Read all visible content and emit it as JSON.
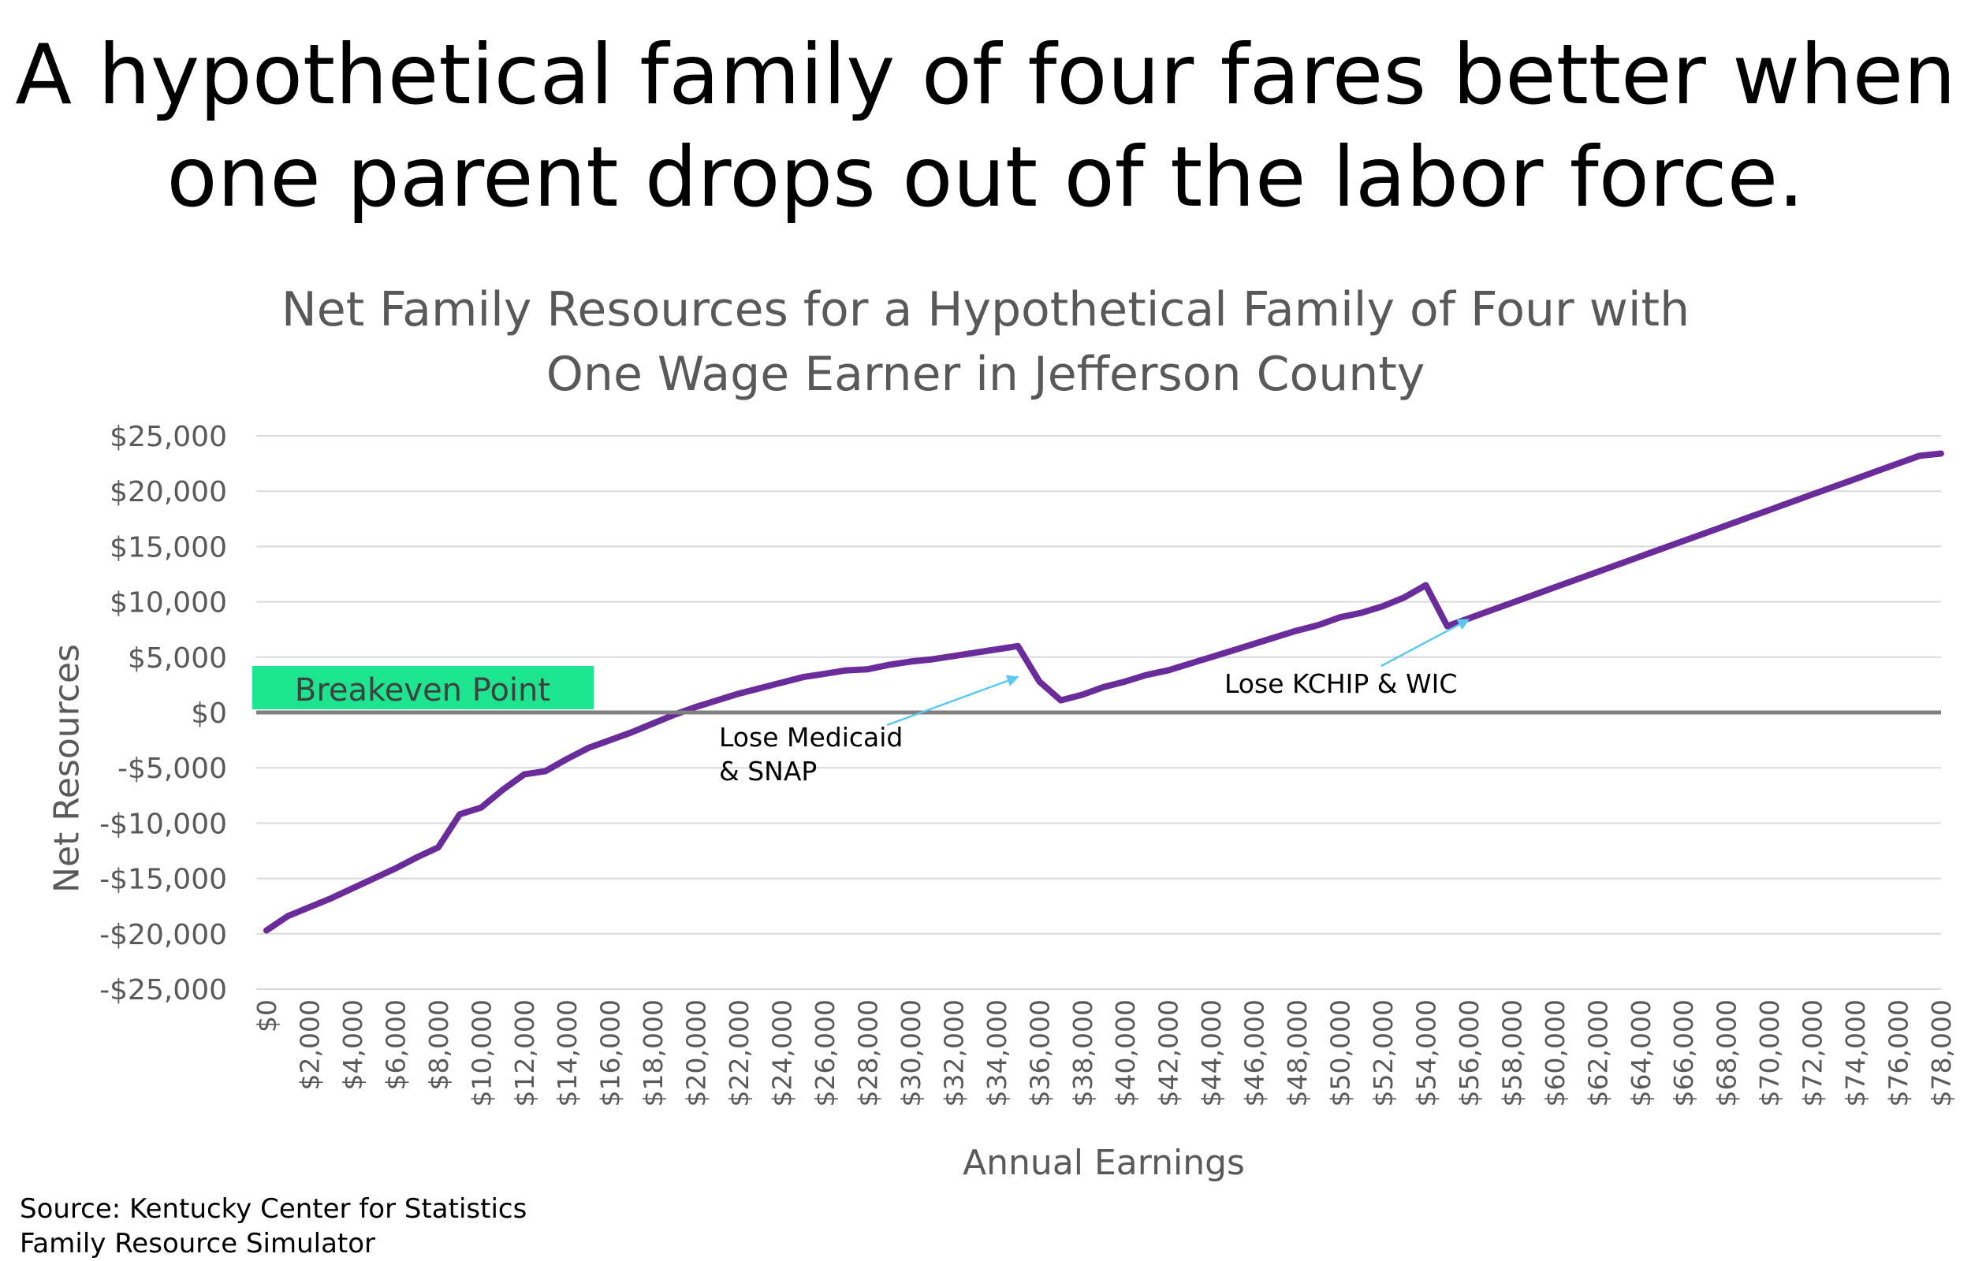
{
  "headline": {
    "line1": "A hypothetical family of four fares better when",
    "line2": "one parent drops out of the labor force."
  },
  "source": {
    "line1": "Source: Kentucky Center for Statistics",
    "line2": "Family Resource Simulator"
  },
  "colors": {
    "line": "#6a2c9a",
    "breakeven_box": "#1de48f",
    "arrow": "#5bc8f0",
    "grid": "#d9d9d9",
    "zero_line": "#7f7f7f"
  },
  "chart_data": {
    "type": "line",
    "title_line1": "Net Family Resources for a Hypothetical Family of Four with",
    "title_line2": "One Wage Earner in Jefferson County",
    "xlabel": "Annual Earnings",
    "ylabel": "Net Resources",
    "xlim": [
      0,
      78000
    ],
    "ylim": [
      -25000,
      25000
    ],
    "grid": true,
    "y_ticks": [
      {
        "value": 25000,
        "label": "$25,000"
      },
      {
        "value": 20000,
        "label": "$20,000"
      },
      {
        "value": 15000,
        "label": "$15,000"
      },
      {
        "value": 10000,
        "label": "$10,000"
      },
      {
        "value": 5000,
        "label": "$5,000"
      },
      {
        "value": 0,
        "label": "$0"
      },
      {
        "value": -5000,
        "label": "-$5,000"
      },
      {
        "value": -10000,
        "label": "-$10,000"
      },
      {
        "value": -15000,
        "label": "-$15,000"
      },
      {
        "value": -20000,
        "label": "-$20,000"
      },
      {
        "value": -25000,
        "label": "-$25,000"
      }
    ],
    "x_ticks": [
      {
        "value": 0,
        "label": "$0"
      },
      {
        "value": 2000,
        "label": "$2,000"
      },
      {
        "value": 4000,
        "label": "$4,000"
      },
      {
        "value": 6000,
        "label": "$6,000"
      },
      {
        "value": 8000,
        "label": "$8,000"
      },
      {
        "value": 10000,
        "label": "$10,000"
      },
      {
        "value": 12000,
        "label": "$12,000"
      },
      {
        "value": 14000,
        "label": "$14,000"
      },
      {
        "value": 16000,
        "label": "$16,000"
      },
      {
        "value": 18000,
        "label": "$18,000"
      },
      {
        "value": 20000,
        "label": "$20,000"
      },
      {
        "value": 22000,
        "label": "$22,000"
      },
      {
        "value": 24000,
        "label": "$24,000"
      },
      {
        "value": 26000,
        "label": "$26,000"
      },
      {
        "value": 28000,
        "label": "$28,000"
      },
      {
        "value": 30000,
        "label": "$30,000"
      },
      {
        "value": 32000,
        "label": "$32,000"
      },
      {
        "value": 34000,
        "label": "$34,000"
      },
      {
        "value": 36000,
        "label": "$36,000"
      },
      {
        "value": 38000,
        "label": "$38,000"
      },
      {
        "value": 40000,
        "label": "$40,000"
      },
      {
        "value": 42000,
        "label": "$42,000"
      },
      {
        "value": 44000,
        "label": "$44,000"
      },
      {
        "value": 46000,
        "label": "$46,000"
      },
      {
        "value": 48000,
        "label": "$48,000"
      },
      {
        "value": 50000,
        "label": "$50,000"
      },
      {
        "value": 52000,
        "label": "$52,000"
      },
      {
        "value": 54000,
        "label": "$54,000"
      },
      {
        "value": 56000,
        "label": "$56,000"
      },
      {
        "value": 58000,
        "label": "$58,000"
      },
      {
        "value": 60000,
        "label": "$60,000"
      },
      {
        "value": 62000,
        "label": "$62,000"
      },
      {
        "value": 64000,
        "label": "$64,000"
      },
      {
        "value": 66000,
        "label": "$66,000"
      },
      {
        "value": 68000,
        "label": "$68,000"
      },
      {
        "value": 70000,
        "label": "$70,000"
      },
      {
        "value": 72000,
        "label": "$72,000"
      },
      {
        "value": 74000,
        "label": "$74,000"
      },
      {
        "value": 76000,
        "label": "$76,000"
      },
      {
        "value": 78000,
        "label": "$78,000"
      }
    ],
    "series": [
      {
        "x": [
          0,
          1000,
          2000,
          3000,
          4000,
          5000,
          6000,
          7000,
          8000,
          9000,
          10000,
          11000,
          12000,
          13000,
          14000,
          15000,
          16000,
          17000,
          18000,
          19000,
          20000,
          21000,
          22000,
          23000,
          24000,
          25000,
          26000,
          27000,
          28000,
          29000,
          30000,
          31000,
          32000,
          33000,
          34000,
          35000,
          36000,
          37000,
          38000,
          39000,
          40000,
          41000,
          42000,
          43000,
          44000,
          45000,
          46000,
          47000,
          48000,
          49000,
          50000,
          51000,
          52000,
          53000,
          54000,
          55000,
          56000,
          57000,
          58000,
          59000,
          60000,
          61000,
          62000,
          63000,
          64000,
          65000,
          66000,
          67000,
          68000,
          69000,
          70000,
          71000,
          72000,
          73000,
          74000,
          75000,
          76000,
          77000,
          78000
        ],
        "values": [
          -19700,
          -18400,
          -17600,
          -16800,
          -15900,
          -15000,
          -14100,
          -13100,
          -12200,
          -9200,
          -8600,
          -7000,
          -5600,
          -5300,
          -4200,
          -3200,
          -2500,
          -1800,
          -1000,
          -200,
          500,
          1100,
          1700,
          2200,
          2700,
          3200,
          3500,
          3800,
          3900,
          4300,
          4600,
          4800,
          5100,
          5400,
          5700,
          6000,
          2800,
          1100,
          1600,
          2300,
          2800,
          3400,
          3800,
          4400,
          5000,
          5600,
          6200,
          6800,
          7400,
          7900,
          8600,
          9000,
          9600,
          10400,
          11500,
          7800,
          8500,
          9200,
          9900,
          10600,
          11300,
          12000,
          12700,
          13400,
          14100,
          14800,
          15500,
          16200,
          16900,
          17600,
          18300,
          19000,
          19700,
          20400,
          21100,
          21800,
          22500,
          23200,
          23400
        ]
      }
    ],
    "breakeven_label": "Breakeven Point",
    "annotations": [
      {
        "line1": "Lose Medicaid",
        "line2": "& SNAP",
        "point_to": [
          35000,
          3200
        ]
      },
      {
        "line1": "Lose KCHIP & WIC",
        "line2": "",
        "point_to": [
          56000,
          8400
        ]
      }
    ]
  }
}
